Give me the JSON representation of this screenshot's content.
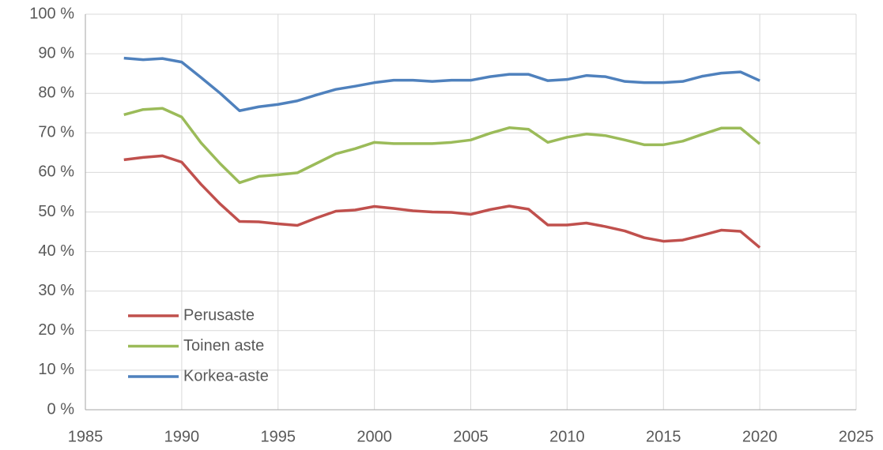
{
  "chart_data": {
    "type": "line",
    "x": [
      1987,
      1988,
      1989,
      1990,
      1991,
      1992,
      1993,
      1994,
      1995,
      1996,
      1997,
      1998,
      1999,
      2000,
      2001,
      2002,
      2003,
      2004,
      2005,
      2006,
      2007,
      2008,
      2009,
      2010,
      2011,
      2012,
      2013,
      2014,
      2015,
      2016,
      2017,
      2018,
      2019,
      2020
    ],
    "series": [
      {
        "name": "Perusaste",
        "color": "#c0504d",
        "values": [
          63.2,
          63.8,
          64.2,
          62.6,
          57,
          52,
          47.6,
          47.5,
          47,
          46.6,
          48.5,
          50.2,
          50.5,
          51.4,
          50.9,
          50.3,
          50,
          49.9,
          49.4,
          50.6,
          51.5,
          50.7,
          46.7,
          46.7,
          47.2,
          46.3,
          45.2,
          43.5,
          42.6,
          42.9,
          44.1,
          45.4,
          45.1,
          41
        ]
      },
      {
        "name": "Toinen aste",
        "color": "#9bbb59",
        "values": [
          74.6,
          75.9,
          76.2,
          74,
          67.5,
          62.2,
          57.4,
          59,
          59.4,
          59.9,
          62.3,
          64.7,
          66,
          67.6,
          67.3,
          67.3,
          67.3,
          67.6,
          68.2,
          69.9,
          71.3,
          70.9,
          67.6,
          68.9,
          69.7,
          69.3,
          68.2,
          67,
          67,
          67.9,
          69.6,
          71.2,
          71.2,
          67.2
        ]
      },
      {
        "name": "Korkea-aste",
        "color": "#4f81bd",
        "values": [
          88.9,
          88.5,
          88.8,
          87.9,
          84,
          80,
          75.6,
          76.6,
          77.2,
          78.1,
          79.6,
          81,
          81.8,
          82.7,
          83.3,
          83.3,
          83,
          83.3,
          83.3,
          84.2,
          84.8,
          84.8,
          83.2,
          83.5,
          84.5,
          84.2,
          83,
          82.7,
          82.7,
          83,
          84.3,
          85.1,
          85.4,
          83.2
        ]
      }
    ],
    "xlim": [
      1985,
      2025
    ],
    "xticks": [
      1985,
      1990,
      1995,
      2000,
      2005,
      2010,
      2015,
      2020,
      2025
    ],
    "ylim": [
      0,
      100
    ],
    "yticks": [
      {
        "value": 0,
        "label": "0 %"
      },
      {
        "value": 10,
        "label": "10 %"
      },
      {
        "value": 20,
        "label": "20 %"
      },
      {
        "value": 30,
        "label": "30 %"
      },
      {
        "value": 40,
        "label": "40 %"
      },
      {
        "value": 50,
        "label": "50 %"
      },
      {
        "value": 60,
        "label": "60 %"
      },
      {
        "value": 70,
        "label": "70 %"
      },
      {
        "value": 80,
        "label": "80 %"
      },
      {
        "value": 90,
        "label": "90 %"
      },
      {
        "value": 100,
        "label": "100 %"
      }
    ],
    "grid": true,
    "legend": "lower-left"
  }
}
